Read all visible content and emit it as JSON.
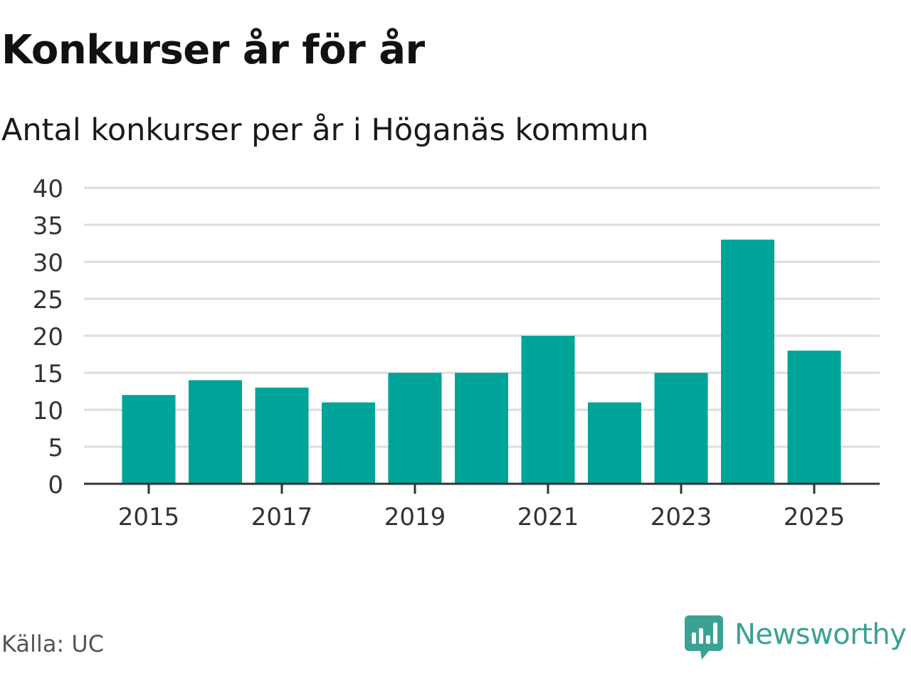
{
  "header": {
    "title": "Konkurser år för år",
    "subtitle": "Antal konkurser per år i Höganäs kommun"
  },
  "footer": {
    "source": "Källa: UC",
    "brand": "Newsworthy",
    "brand_icon": "newsworthy-logo-icon"
  },
  "colors": {
    "bar": "#00a499",
    "grid": "#dddddd",
    "axis": "#333333",
    "tick_text": "#333333",
    "brand": "#3aa294"
  },
  "chart_data": {
    "type": "bar",
    "categories": [
      "2015",
      "2016",
      "2017",
      "2018",
      "2019",
      "2020",
      "2021",
      "2022",
      "2023",
      "2024",
      "2025"
    ],
    "values": [
      12,
      14,
      13,
      11,
      15,
      15,
      20,
      11,
      15,
      33,
      18
    ],
    "x_tick_labels": [
      "2015",
      "2017",
      "2019",
      "2021",
      "2023",
      "2025"
    ],
    "y_ticks": [
      0,
      5,
      10,
      15,
      20,
      25,
      30,
      35,
      40
    ],
    "ylim": [
      0,
      40
    ],
    "grid": true,
    "legend": "none"
  }
}
